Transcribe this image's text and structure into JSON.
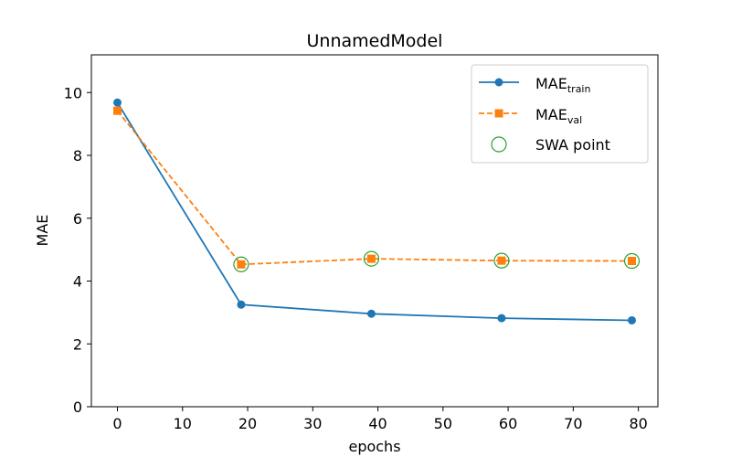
{
  "chart_data": {
    "type": "line",
    "title": "UnnamedModel",
    "xlabel": "epochs",
    "ylabel": "MAE",
    "xlim": [
      -4,
      83
    ],
    "ylim": [
      0,
      11.2
    ],
    "xticks": [
      0,
      10,
      20,
      30,
      40,
      50,
      60,
      70,
      80
    ],
    "yticks": [
      0,
      2,
      4,
      6,
      8,
      10
    ],
    "grid": false,
    "legend_position": "top-right",
    "series": [
      {
        "name_main": "MAE",
        "name_sub": "train",
        "color": "#1f77b4",
        "marker": "circle",
        "line_style": "solid",
        "x": [
          0,
          19,
          39,
          59,
          79
        ],
        "y": [
          9.68,
          3.25,
          2.96,
          2.82,
          2.75
        ]
      },
      {
        "name_main": "MAE",
        "name_sub": "val",
        "color": "#ff7f0e",
        "marker": "square",
        "line_style": "dashed",
        "x": [
          0,
          19,
          39,
          59,
          79
        ],
        "y": [
          9.42,
          4.53,
          4.71,
          4.65,
          4.64
        ]
      }
    ],
    "swa_points": {
      "name": "SWA point",
      "color": "#2ca02c",
      "marker": "open-circle",
      "x": [
        19,
        39,
        59,
        79
      ],
      "y": [
        4.53,
        4.71,
        4.65,
        4.64
      ]
    }
  }
}
